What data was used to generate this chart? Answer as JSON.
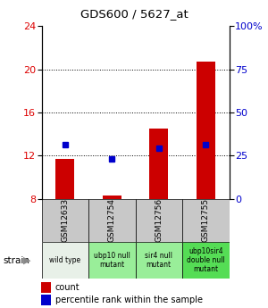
{
  "title": "GDS600 / 5627_at",
  "samples": [
    "GSM12633",
    "GSM12754",
    "GSM12756",
    "GSM12755"
  ],
  "strains": [
    "wild type",
    "ubp10 null\nmutant",
    "sir4 null\nmutant",
    "ubp10sir4\ndouble null\nmutant"
  ],
  "red_values": [
    11.7,
    8.3,
    14.5,
    20.7
  ],
  "blue_values": [
    13.0,
    11.7,
    12.7,
    13.0
  ],
  "ymin": 8,
  "ymax": 24,
  "yticks_left": [
    8,
    12,
    16,
    20,
    24
  ],
  "yticks_right": [
    0,
    25,
    50,
    75,
    100
  ],
  "bar_color": "#cc0000",
  "dot_color": "#0000cc",
  "bar_width": 0.4,
  "gray_bg": "#c8c8c8",
  "strain_colors": [
    "#e8f0e8",
    "#99ee99",
    "#99ee99",
    "#55dd55"
  ],
  "legend_red": "count",
  "legend_blue": "percentile rank within the sample",
  "left_label_color": "#dd0000",
  "right_label_color": "#0000cc"
}
